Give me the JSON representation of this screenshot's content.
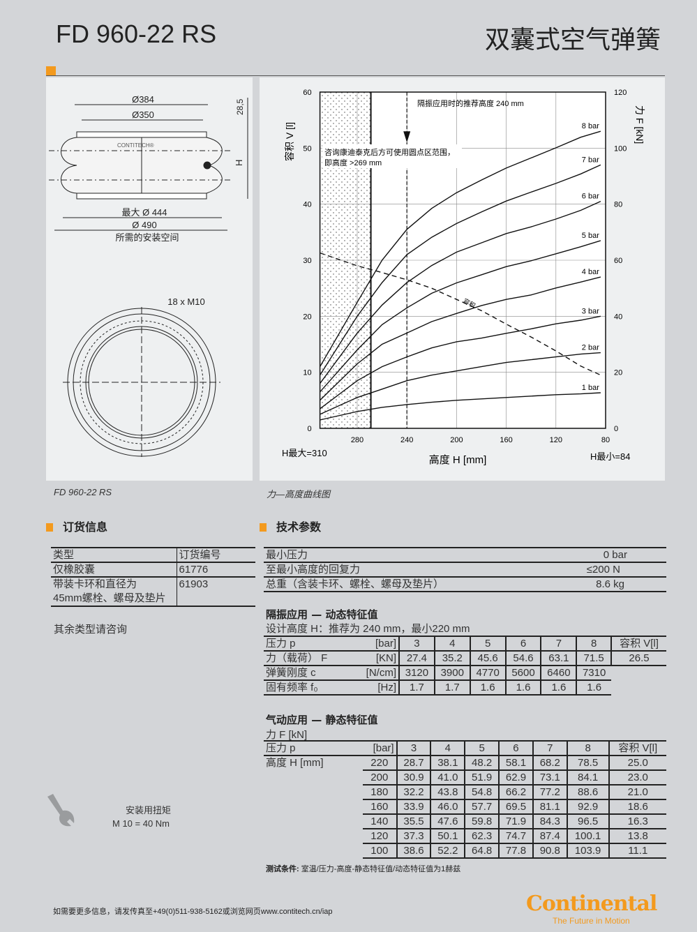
{
  "header": {
    "model": "FD 960-22 RS",
    "title_cn": "双囊式空气弹簧"
  },
  "drawing": {
    "d384": "Ø384",
    "d350": "Ø350",
    "dim_28_5": "28,5",
    "dim_h": "H",
    "max_d": "最大 Ø 444",
    "d490": "Ø 490",
    "space": "所需的安装空间",
    "bolts": "18 x M10",
    "logo": "CONTITECH®",
    "caption": "FD 960-22 RS"
  },
  "chart_caption": "力—高度曲线图",
  "chart_data": {
    "type": "line",
    "xlabel": "高度 H [mm]",
    "ylabel_left": "容积 V [l]",
    "ylabel_right": "力 F [kN]",
    "xlim": [
      310,
      80
    ],
    "ylim_left": [
      0,
      60
    ],
    "ylim_right": [
      0,
      120
    ],
    "xticks": [
      280,
      240,
      200,
      160,
      120,
      80
    ],
    "yticks_left": [
      0,
      10,
      20,
      30,
      40,
      50,
      60
    ],
    "yticks_right": [
      0,
      20,
      40,
      60,
      80,
      100,
      120
    ],
    "grid": true,
    "h_max": "H最大=310",
    "h_min": "H最小=84",
    "annotation_recommended": "隔振应用时的推荐高度  240 mm",
    "annotation_dotted": [
      "咨询康迪泰克后方可使用圆点区范围，",
      "即高度  >269 mm"
    ],
    "recommended_height": 240,
    "dotted_limit": 269,
    "x": [
      310,
      280,
      260,
      240,
      220,
      200,
      180,
      160,
      140,
      120,
      100,
      84
    ],
    "series": [
      {
        "name": "8 bar",
        "axis": "right",
        "values": [
          22,
          45,
          60,
          71,
          78.5,
          84.1,
          88.6,
          92.9,
          96.5,
          100.1,
          103.9,
          106
        ]
      },
      {
        "name": "7 bar",
        "axis": "right",
        "values": [
          19,
          40,
          52,
          62,
          68.2,
          73.1,
          77.2,
          81.1,
          84.3,
          87.4,
          90.8,
          94
        ]
      },
      {
        "name": "6 bar",
        "axis": "right",
        "values": [
          16,
          34,
          44,
          52,
          58.1,
          62.9,
          66.2,
          69.5,
          71.9,
          74.7,
          77.8,
          81
        ]
      },
      {
        "name": "5 bar",
        "axis": "right",
        "values": [
          13,
          28,
          37,
          43,
          48.2,
          51.9,
          54.8,
          57.7,
          59.8,
          62.3,
          64.8,
          67
        ]
      },
      {
        "name": "4 bar",
        "axis": "right",
        "values": [
          10,
          23,
          30,
          34,
          38.1,
          41,
          43.8,
          46,
          47.6,
          50.1,
          52.2,
          54
        ]
      },
      {
        "name": "3 bar",
        "axis": "right",
        "values": [
          7,
          17,
          22,
          25.5,
          28.7,
          30.9,
          32.2,
          33.9,
          35.5,
          37.3,
          38.6,
          40
        ]
      },
      {
        "name": "2 bar",
        "axis": "right",
        "values": [
          5,
          11,
          14,
          17,
          19,
          20.5,
          22,
          23.5,
          24.5,
          25.5,
          26.5,
          27
        ]
      },
      {
        "name": "1 bar",
        "axis": "right",
        "values": [
          3,
          6,
          7.5,
          8.5,
          9.3,
          10,
          10.5,
          11,
          11.5,
          12,
          12.3,
          12.7
        ]
      },
      {
        "name": "容积",
        "axis": "left",
        "dashed": true,
        "values": [
          31.3,
          29,
          27.8,
          26.5,
          25,
          23,
          21,
          18.6,
          16.3,
          13.8,
          11.1,
          9.5
        ]
      }
    ]
  },
  "ordering": {
    "title": "订货信息",
    "head": [
      "类型",
      "订货编号"
    ],
    "rows": [
      [
        "仅橡胶囊",
        "61776"
      ],
      [
        "带装卡环和直径为\n45mm螺栓、螺母及垫片",
        "61903"
      ]
    ],
    "note": "其余类型请咨询"
  },
  "tech": {
    "title": "技术参数",
    "rows": [
      [
        "最小压力",
        "0 bar"
      ],
      [
        "至最小高度的回复力",
        "≤200 N"
      ],
      [
        "总重（含装卡环、螺栓、螺母及垫片）",
        "8.6 kg"
      ]
    ]
  },
  "dynamic": {
    "title": "隔振应用 — 动态特征值",
    "subtitle": "设计高度 H：推荐为 240 mm，最小220 mm",
    "head": [
      "压力 p",
      "[bar]",
      "3",
      "4",
      "5",
      "6",
      "7",
      "8",
      "容积 V[l]"
    ],
    "rows": [
      [
        "力（载荷） F",
        "[KN]",
        "27.4",
        "35.2",
        "45.6",
        "54.6",
        "63.1",
        "71.5"
      ],
      [
        "弹簧刚度 c",
        "[N/cm]",
        "3120",
        "3900",
        "4770",
        "5600",
        "6460",
        "7310"
      ],
      [
        "固有频率  f₀",
        "[Hz]",
        "1.7",
        "1.7",
        "1.6",
        "1.6",
        "1.6",
        "1.6"
      ]
    ],
    "volume": "26.5"
  },
  "static": {
    "title": "气动应用 — 静态特征值",
    "subtitle": "力 F [kN]",
    "head": [
      "压力 p",
      "[bar]",
      "3",
      "4",
      "5",
      "6",
      "7",
      "8",
      "容积 V[l]"
    ],
    "row_label": "高度 H [mm]",
    "rows": [
      [
        "220",
        "28.7",
        "38.1",
        "48.2",
        "58.1",
        "68.2",
        "78.5",
        "25.0"
      ],
      [
        "200",
        "30.9",
        "41.0",
        "51.9",
        "62.9",
        "73.1",
        "84.1",
        "23.0"
      ],
      [
        "180",
        "32.2",
        "43.8",
        "54.8",
        "66.2",
        "77.2",
        "88.6",
        "21.0"
      ],
      [
        "160",
        "33.9",
        "46.0",
        "57.7",
        "69.5",
        "81.1",
        "92.9",
        "18.6"
      ],
      [
        "140",
        "35.5",
        "47.6",
        "59.8",
        "71.9",
        "84.3",
        "96.5",
        "16.3"
      ],
      [
        "120",
        "37.3",
        "50.1",
        "62.3",
        "74.7",
        "87.4",
        "100.1",
        "13.8"
      ],
      [
        "100",
        "38.6",
        "52.2",
        "64.8",
        "77.8",
        "90.8",
        "103.9",
        "11.1"
      ]
    ],
    "test_label": "测试条件:",
    "test_text": "室温/压力-高度-静态特征值/动态特征值为1赫兹"
  },
  "torque": {
    "label": "安装用扭矩",
    "value": "M 10 = 40 Nm",
    "icon": "wrench-icon"
  },
  "footer": {
    "contact": "如需要更多信息，请发传真至+49(0)511-938-5162或浏览网页www.contitech.cn/iap",
    "brand": "Continental",
    "tagline": "The Future in Motion",
    "brand_color": "#f39a1e"
  }
}
